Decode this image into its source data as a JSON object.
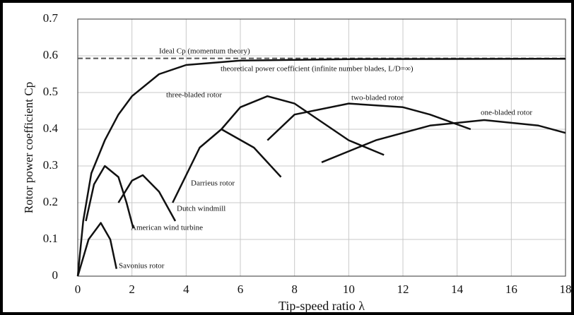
{
  "chart_data": {
    "type": "line",
    "x_label": "Tip-speed ratio λ",
    "y_label": "Rotor power coefficient Cp",
    "xlim": [
      0,
      18
    ],
    "xticks": [
      0,
      2,
      4,
      6,
      8,
      10,
      12,
      14,
      16,
      18
    ],
    "ylim": [
      0,
      0.7
    ],
    "yticks": [
      0,
      0.1,
      0.2,
      0.3,
      0.4,
      0.5,
      0.6,
      0.7
    ],
    "grid": true,
    "series": [
      {
        "name": "Ideal Cp (momentum theory)",
        "color": "#555555",
        "dashed": true,
        "x": [
          0,
          18
        ],
        "values": [
          0.593,
          0.593
        ]
      },
      {
        "name": "theoretical power coefficient (infinite number blades, L/D=∞)",
        "color": "#111111",
        "x": [
          0,
          0.2,
          0.5,
          1,
          1.5,
          2,
          3,
          4,
          6,
          10,
          18
        ],
        "values": [
          0,
          0.15,
          0.28,
          0.37,
          0.44,
          0.49,
          0.55,
          0.575,
          0.587,
          0.591,
          0.592
        ]
      },
      {
        "name": "three-bladed rotor",
        "color": "#111111",
        "x": [
          5.3,
          6,
          7,
          8,
          9,
          10,
          11.3
        ],
        "values": [
          0.4,
          0.46,
          0.49,
          0.47,
          0.42,
          0.37,
          0.33
        ]
      },
      {
        "name": "two-bladed rotor",
        "color": "#111111",
        "x": [
          7,
          8,
          10,
          12,
          13,
          14.5
        ],
        "values": [
          0.37,
          0.44,
          0.47,
          0.46,
          0.44,
          0.4
        ]
      },
      {
        "name": "one-bladed rotor",
        "color": "#111111",
        "x": [
          9,
          11,
          13,
          15,
          17,
          18
        ],
        "values": [
          0.31,
          0.37,
          0.41,
          0.425,
          0.41,
          0.39
        ]
      },
      {
        "name": "Darrieus rotor",
        "color": "#111111",
        "x": [
          3.5,
          4.5,
          5.3,
          6.5,
          7.5
        ],
        "values": [
          0.2,
          0.35,
          0.4,
          0.35,
          0.27
        ]
      },
      {
        "name": "Dutch windmill",
        "color": "#111111",
        "x": [
          1.5,
          2,
          2.4,
          3,
          3.6
        ],
        "values": [
          0.2,
          0.26,
          0.275,
          0.23,
          0.15
        ]
      },
      {
        "name": "American wind turbine",
        "color": "#111111",
        "x": [
          0.3,
          0.6,
          1,
          1.5,
          1.8,
          2.05
        ],
        "values": [
          0.15,
          0.25,
          0.3,
          0.27,
          0.2,
          0.13
        ]
      },
      {
        "name": "Savonius rotor",
        "color": "#111111",
        "x": [
          0,
          0.4,
          0.85,
          1.2,
          1.43
        ],
        "values": [
          0,
          0.1,
          0.145,
          0.1,
          0.02
        ]
      }
    ]
  }
}
